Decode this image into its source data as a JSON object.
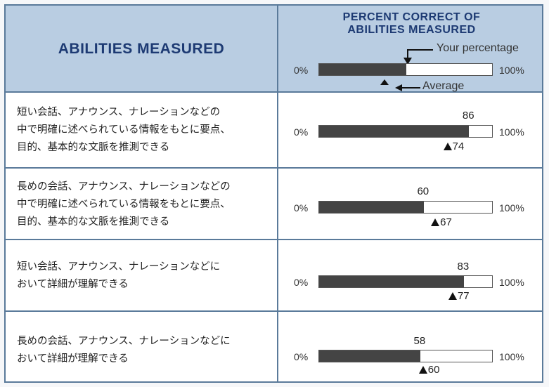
{
  "header": {
    "left_title": "ABILITIES MEASURED",
    "right_title_line1": "PERCENT CORRECT OF",
    "right_title_line2": "ABILITIES MEASURED"
  },
  "legend": {
    "zero_label": "0%",
    "hundred_label": "100%",
    "your_percentage_label": "Your percentage",
    "average_label": "Average",
    "sample_your": 50,
    "sample_average": 36
  },
  "rows": [
    {
      "line1": "短い会話、アナウンス、ナレーションなどの",
      "line2": "中で明確に述べられている情報をもとに要点、",
      "line3": "目的、基本的な文脈を推測できる"
    },
    {
      "line1": "長めの会話、アナウンス、ナレーションなどの",
      "line2": "中で明確に述べられている情報をもとに要点、",
      "line3": "目的、基本的な文脈を推測できる"
    },
    {
      "line1": "短い会話、アナウンス、ナレーションなどに",
      "line2": "おいて詳細が理解できる"
    },
    {
      "line1": "長めの会話、アナウンス、ナレーションなどに",
      "line2": "おいて詳細が理解できる"
    }
  ],
  "chart_data": {
    "type": "bar",
    "orientation": "horizontal",
    "categories": [
      "短い会話、アナウンス、ナレーションなどの中で明確に述べられている情報をもとに要点、目的、基本的な文脈を推測できる",
      "長めの会話、アナウンス、ナレーションなどの中で明確に述べられている情報をもとに要点、目的、基本的な文脈を推測できる",
      "短い会話、アナウンス、ナレーションなどにおいて詳細が理解できる",
      "長めの会話、アナウンス、ナレーションなどにおいて詳細が理解できる"
    ],
    "series": [
      {
        "name": "Your percentage",
        "values": [
          86,
          60,
          83,
          58
        ]
      },
      {
        "name": "Average",
        "values": [
          74,
          67,
          77,
          60
        ]
      }
    ],
    "title": "PERCENT CORRECT OF ABILITIES MEASURED",
    "xlim": [
      0,
      100
    ],
    "tick_labels": [
      "0%",
      "100%"
    ],
    "colors": {
      "bar_fill": "#444444",
      "bar_empty": "#ffffff",
      "header_bg": "#b9cde2",
      "header_text": "#1d3a73"
    }
  }
}
